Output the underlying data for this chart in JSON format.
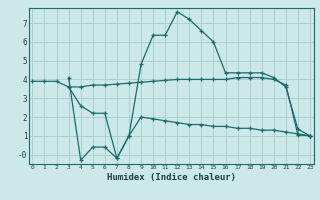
{
  "xlabel": "Humidex (Indice chaleur)",
  "background_color": "#cce8e8",
  "grid_color": "#aad0d0",
  "line_color": "#1a6b6b",
  "x_min": 0,
  "x_max": 23,
  "y_min": -0.5,
  "y_max": 7.8,
  "line1_x": [
    0,
    1,
    2,
    3,
    4,
    5,
    6,
    7,
    8,
    9,
    10,
    11,
    12,
    13,
    14,
    15,
    16,
    17,
    18,
    19,
    20,
    21,
    22,
    23
  ],
  "line1_y": [
    3.9,
    3.9,
    3.9,
    3.6,
    3.6,
    3.7,
    3.7,
    3.75,
    3.8,
    3.85,
    3.9,
    3.95,
    4.0,
    4.0,
    4.0,
    4.0,
    4.0,
    4.1,
    4.1,
    4.1,
    4.0,
    3.7,
    1.05,
    1.0
  ],
  "line2_x": [
    3,
    4,
    5,
    6,
    7,
    8,
    9,
    10,
    11,
    12,
    13,
    14,
    15,
    16,
    17,
    18,
    19,
    20,
    21,
    22,
    23
  ],
  "line2_y": [
    4.1,
    -0.3,
    0.4,
    0.4,
    -0.2,
    1.0,
    4.8,
    6.35,
    6.35,
    7.6,
    7.2,
    6.6,
    6.0,
    4.35,
    4.35,
    4.35,
    4.35,
    4.1,
    3.6,
    1.35,
    1.0
  ],
  "line3_x": [
    3,
    4,
    5,
    6,
    7,
    8,
    9,
    10,
    11,
    12,
    13,
    14,
    15,
    16,
    17,
    18,
    19,
    20,
    21,
    22,
    23
  ],
  "line3_y": [
    3.6,
    2.6,
    2.2,
    2.2,
    -0.2,
    1.0,
    2.0,
    1.9,
    1.8,
    1.7,
    1.6,
    1.6,
    1.5,
    1.5,
    1.4,
    1.4,
    1.3,
    1.3,
    1.2,
    1.1,
    1.0
  ]
}
